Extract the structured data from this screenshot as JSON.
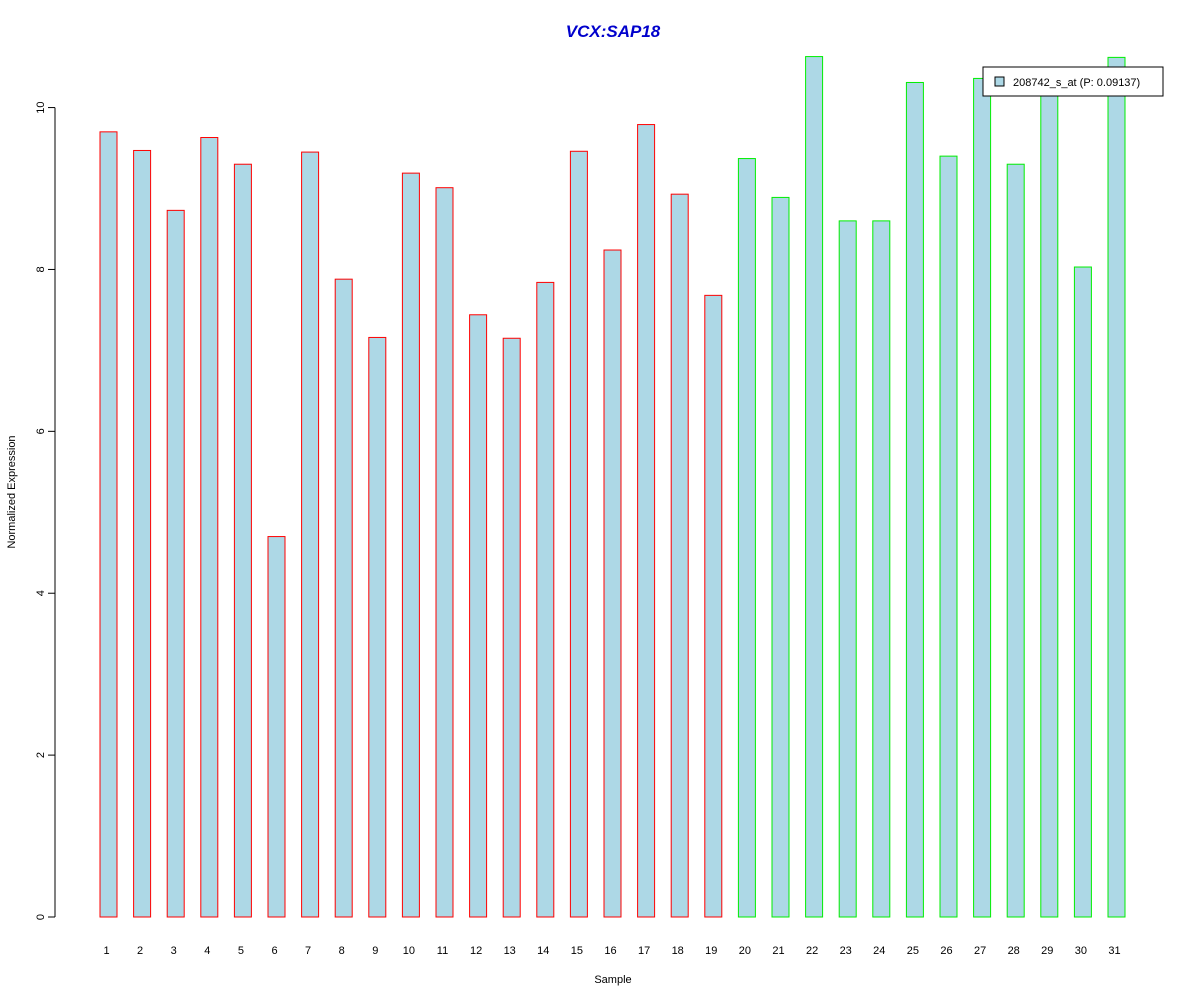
{
  "colors": {
    "title": "#0000CC",
    "bar_fill": "#ADD8E6",
    "group1_border": "#FF0000",
    "group2_border": "#00EE00",
    "axis": "#000000"
  },
  "chart_data": {
    "type": "bar",
    "title": "VCX:SAP18",
    "xlabel": "Sample",
    "ylabel": "Normalized Expression",
    "ylim": [
      0,
      10.6
    ],
    "yticks": [
      0,
      2,
      4,
      6,
      8,
      10
    ],
    "categories": [
      "1",
      "2",
      "3",
      "4",
      "5",
      "6",
      "7",
      "8",
      "9",
      "10",
      "11",
      "12",
      "13",
      "14",
      "15",
      "16",
      "17",
      "18",
      "19",
      "20",
      "21",
      "22",
      "23",
      "24",
      "25",
      "26",
      "27",
      "28",
      "29",
      "30",
      "31"
    ],
    "values": [
      9.7,
      9.47,
      8.73,
      9.63,
      9.3,
      4.7,
      9.45,
      7.88,
      7.16,
      9.19,
      9.01,
      7.44,
      7.15,
      7.84,
      9.46,
      8.24,
      9.79,
      8.93,
      7.68,
      9.37,
      8.89,
      10.63,
      8.6,
      8.6,
      10.31,
      9.4,
      10.36,
      9.3,
      10.24,
      8.03,
      10.62
    ],
    "groups": [
      1,
      1,
      1,
      1,
      1,
      1,
      1,
      1,
      1,
      1,
      1,
      1,
      1,
      1,
      1,
      1,
      1,
      1,
      1,
      2,
      2,
      2,
      2,
      2,
      2,
      2,
      2,
      2,
      2,
      2,
      2
    ],
    "legend": {
      "label": "208742_s_at (P: 0.09137)",
      "position": "top-right"
    },
    "grid": false
  }
}
